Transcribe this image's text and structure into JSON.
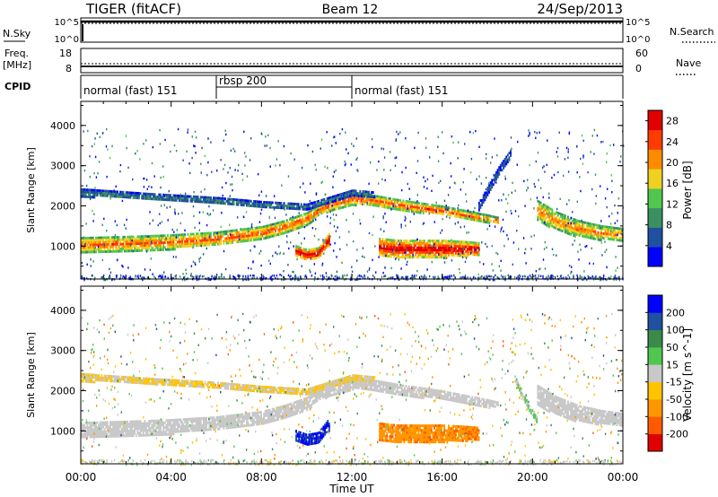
{
  "header": {
    "radar": "TIGER (fitACF)",
    "beam": "Beam 12",
    "date": "24/Sep/2013"
  },
  "strip_noise": {
    "left_label": "N.Sky",
    "right_label": "N.Search",
    "left_ticks": [
      "10^5",
      "10^0"
    ],
    "right_ticks": [
      "10^5",
      "10^0"
    ]
  },
  "strip_freq": {
    "left_label_1": "Freq.",
    "left_label_2": "[MHz]",
    "right_label": "Nave",
    "left_ticks": [
      "18",
      "8"
    ],
    "right_ticks": [
      "60",
      "0"
    ]
  },
  "cpid": {
    "label": "CPID",
    "segments": [
      {
        "start_hour": 0,
        "end_hour": 6,
        "label": "normal (fast) 151"
      },
      {
        "start_hour": 6,
        "end_hour": 12,
        "label": "rbsp 200"
      },
      {
        "start_hour": 12,
        "end_hour": 24,
        "label": "normal (fast) 151"
      }
    ]
  },
  "chart_data": [
    {
      "type": "heatmap",
      "title": "Power",
      "xlabel": "Time UT",
      "ylabel": "Slant Range [km]",
      "x_ticks": [
        "00:00",
        "04:00",
        "08:00",
        "12:00",
        "16:00",
        "20:00",
        "00:00"
      ],
      "x_range_hours": [
        0,
        24
      ],
      "ylim": [
        180,
        4600
      ],
      "y_ticks": [
        1000,
        2000,
        3000,
        4000
      ],
      "colorbar": {
        "label": "Power [dB]",
        "ticks": [
          4,
          8,
          12,
          16,
          20,
          24,
          28
        ],
        "range": [
          0,
          30
        ],
        "colors": [
          "#0000ff",
          "#2050a0",
          "#3a9060",
          "#50c850",
          "#f0d020",
          "#ff8c00",
          "#ff3c00",
          "#e00000"
        ]
      },
      "bands": [
        {
          "name": "main",
          "t": [
            0,
            2,
            4,
            6,
            8,
            9,
            10,
            10.5,
            11,
            12,
            13,
            14,
            16,
            17,
            18,
            18.5
          ],
          "center": [
            1050,
            1080,
            1120,
            1200,
            1350,
            1500,
            1700,
            1900,
            2050,
            2200,
            2150,
            2050,
            1900,
            1800,
            1700,
            1650
          ],
          "width": [
            350,
            350,
            350,
            330,
            300,
            300,
            300,
            280,
            300,
            300,
            250,
            250,
            220,
            200,
            180,
            150
          ],
          "value": 22
        },
        {
          "name": "upper",
          "t": [
            0,
            3,
            6,
            8,
            10,
            12,
            13
          ],
          "center": [
            2350,
            2250,
            2150,
            2050,
            2000,
            2350,
            2300
          ],
          "width": [
            180,
            150,
            150,
            150,
            120,
            120,
            120
          ],
          "value": 8
        },
        {
          "name": "echo-low",
          "t": [
            13.2,
            14,
            15,
            16,
            17,
            17.6
          ],
          "center": [
            1000,
            950,
            950,
            950,
            950,
            950
          ],
          "width": [
            420,
            420,
            420,
            420,
            360,
            300
          ],
          "value": 27
        },
        {
          "name": "echo-tail",
          "t": [
            20.2,
            21,
            22,
            23,
            24
          ],
          "center": [
            1900,
            1650,
            1450,
            1350,
            1300
          ],
          "width": [
            500,
            450,
            400,
            350,
            300
          ],
          "value": 20
        },
        {
          "name": "dip",
          "t": [
            9.5,
            10,
            10.5,
            11
          ],
          "center": [
            900,
            800,
            850,
            1200
          ],
          "width": [
            250,
            250,
            250,
            300
          ],
          "value": 28
        },
        {
          "name": "spike",
          "t": [
            17.6,
            18,
            18.5,
            19
          ],
          "center": [
            2000,
            2400,
            2900,
            3300
          ],
          "width": [
            200,
            200,
            200,
            200
          ],
          "value": 6
        }
      ]
    },
    {
      "type": "heatmap",
      "title": "Velocity",
      "xlabel": "Time UT",
      "ylabel": "Slant Range [km]",
      "x_ticks": [
        "00:00",
        "04:00",
        "08:00",
        "12:00",
        "16:00",
        "20:00",
        "00:00"
      ],
      "x_range_hours": [
        0,
        24
      ],
      "ylim": [
        180,
        4600
      ],
      "y_ticks": [
        1000,
        2000,
        3000,
        4000
      ],
      "colorbar": {
        "label": "Velocity [m s^-1]",
        "ticks": [
          200,
          100,
          50,
          15,
          -15,
          -50,
          -100,
          -200
        ],
        "range": [
          -250,
          250
        ],
        "colors": [
          "#e00000",
          "#ff5a00",
          "#ff9600",
          "#ffc400",
          "#c8c8c8",
          "#50c850",
          "#3a8a4a",
          "#2050a0",
          "#0000ff"
        ]
      },
      "bands": [
        {
          "name": "main",
          "t": [
            0,
            2,
            4,
            6,
            8,
            9,
            10,
            10.5,
            11,
            12,
            13,
            14,
            16,
            17,
            18,
            18.5
          ],
          "center": [
            1050,
            1080,
            1120,
            1200,
            1350,
            1500,
            1700,
            1900,
            2050,
            2200,
            2150,
            2050,
            1900,
            1800,
            1700,
            1650
          ],
          "width": [
            350,
            350,
            350,
            330,
            300,
            300,
            300,
            280,
            300,
            300,
            250,
            250,
            220,
            200,
            180,
            150
          ],
          "value": 0
        },
        {
          "name": "upper",
          "t": [
            0,
            3,
            6,
            8,
            10,
            12,
            13
          ],
          "center": [
            2350,
            2250,
            2150,
            2050,
            2000,
            2350,
            2300
          ],
          "width": [
            180,
            150,
            150,
            150,
            120,
            120,
            120
          ],
          "value": -30
        },
        {
          "name": "echo-low",
          "t": [
            13.2,
            14,
            15,
            16,
            17,
            17.6
          ],
          "center": [
            1000,
            950,
            950,
            950,
            950,
            950
          ],
          "width": [
            420,
            420,
            420,
            420,
            360,
            300
          ],
          "value": -120
        },
        {
          "name": "echo-tail",
          "t": [
            20.2,
            21,
            22,
            23,
            24
          ],
          "center": [
            1900,
            1650,
            1450,
            1350,
            1300
          ],
          "width": [
            500,
            450,
            400,
            350,
            300
          ],
          "value": 0
        },
        {
          "name": "dip",
          "t": [
            9.5,
            10,
            10.5,
            11
          ],
          "center": [
            900,
            800,
            850,
            1200
          ],
          "width": [
            250,
            250,
            250,
            300
          ],
          "value": 200
        },
        {
          "name": "spike",
          "t": [
            19.2,
            19.8,
            20.2
          ],
          "center": [
            2300,
            1600,
            1250
          ],
          "width": [
            160,
            160,
            160
          ],
          "value": 30
        }
      ]
    }
  ]
}
